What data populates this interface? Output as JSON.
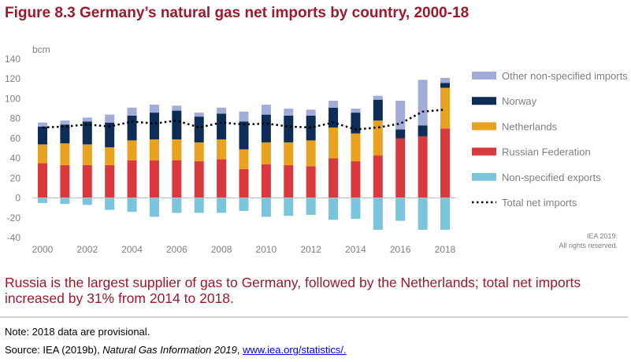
{
  "figure": {
    "title": "Figure 8.3 Germany’s natural gas net imports by country, 2000-18",
    "caption": "Russia is the largest supplier of gas to Germany, followed by the Netherlands; total net imports increased by 31% from 2014 to 2018.",
    "credit_line1": "IEA 2019.",
    "credit_line2": "All rights reserved."
  },
  "note": "Note: 2018 data are provisional.",
  "source": {
    "prefix": "Source: IEA (2019b), ",
    "title": "Natural Gas Information 2019",
    "separator": ", ",
    "link_text": "www.iea.org/statistics/."
  },
  "colors": {
    "russian_federation": "#d9393d",
    "netherlands": "#e8a220",
    "norway": "#0d2d56",
    "other_non_specified_imports": "#a2acd8",
    "non_specified_exports": "#7ac4dc",
    "total_net_imports": "#000000",
    "title": "#a0182c",
    "axis_text": "#7f7f7f"
  },
  "chart_data": {
    "type": "bar",
    "stacked": true,
    "x": [
      2000,
      2001,
      2002,
      2003,
      2004,
      2005,
      2006,
      2007,
      2008,
      2009,
      2010,
      2011,
      2012,
      2013,
      2014,
      2015,
      2016,
      2017,
      2018
    ],
    "xticks": [
      2000,
      2002,
      2004,
      2006,
      2008,
      2010,
      2012,
      2014,
      2016,
      2018
    ],
    "ylabel": "bcm",
    "ylim": [
      -40,
      140
    ],
    "yticks": [
      -40,
      -20,
      0,
      20,
      40,
      60,
      80,
      100,
      120,
      140
    ],
    "grid": false,
    "legend_position": "right",
    "series": [
      {
        "name": "Russian Federation",
        "color_key": "russian_federation",
        "values": [
          35,
          33,
          33,
          33,
          38,
          38,
          38,
          37,
          39,
          29,
          34,
          33,
          32,
          40,
          37,
          43,
          60,
          62,
          70
        ]
      },
      {
        "name": "Netherlands",
        "color_key": "netherlands",
        "values": [
          19,
          22,
          21,
          18,
          20,
          21,
          21,
          19,
          20,
          20,
          22,
          23,
          26,
          31,
          28,
          35,
          0,
          0,
          41
        ]
      },
      {
        "name": "Norway",
        "color_key": "norway",
        "values": [
          18,
          19,
          23,
          25,
          25,
          27,
          29,
          26,
          26,
          28,
          28,
          27,
          25,
          20,
          21,
          21,
          9,
          11,
          5
        ]
      },
      {
        "name": "Other non-specified imports",
        "color_key": "other_non_specified_imports",
        "values": [
          4,
          4,
          4,
          8,
          8,
          8,
          5,
          4,
          6,
          10,
          10,
          7,
          6,
          7,
          4,
          4,
          29,
          46,
          5
        ]
      },
      {
        "name": "Non-specified exports",
        "color_key": "non_specified_exports",
        "values": [
          -5,
          -6,
          -7,
          -12,
          -14,
          -19,
          -15,
          -15,
          -15,
          -13,
          -19,
          -18,
          -17,
          -22,
          -21,
          -32,
          -23,
          -32,
          -32
        ]
      }
    ],
    "line": {
      "name": "Total net imports",
      "color_key": "total_net_imports",
      "style": "dotted",
      "values": [
        71,
        72,
        74,
        72,
        77,
        75,
        78,
        71,
        76,
        74,
        75,
        72,
        71,
        76,
        69,
        71,
        75,
        87,
        89
      ]
    },
    "legend": [
      "Other non-specified imports",
      "Norway",
      "Netherlands",
      "Russian Federation",
      "Non-specified exports",
      "Total net imports"
    ]
  }
}
